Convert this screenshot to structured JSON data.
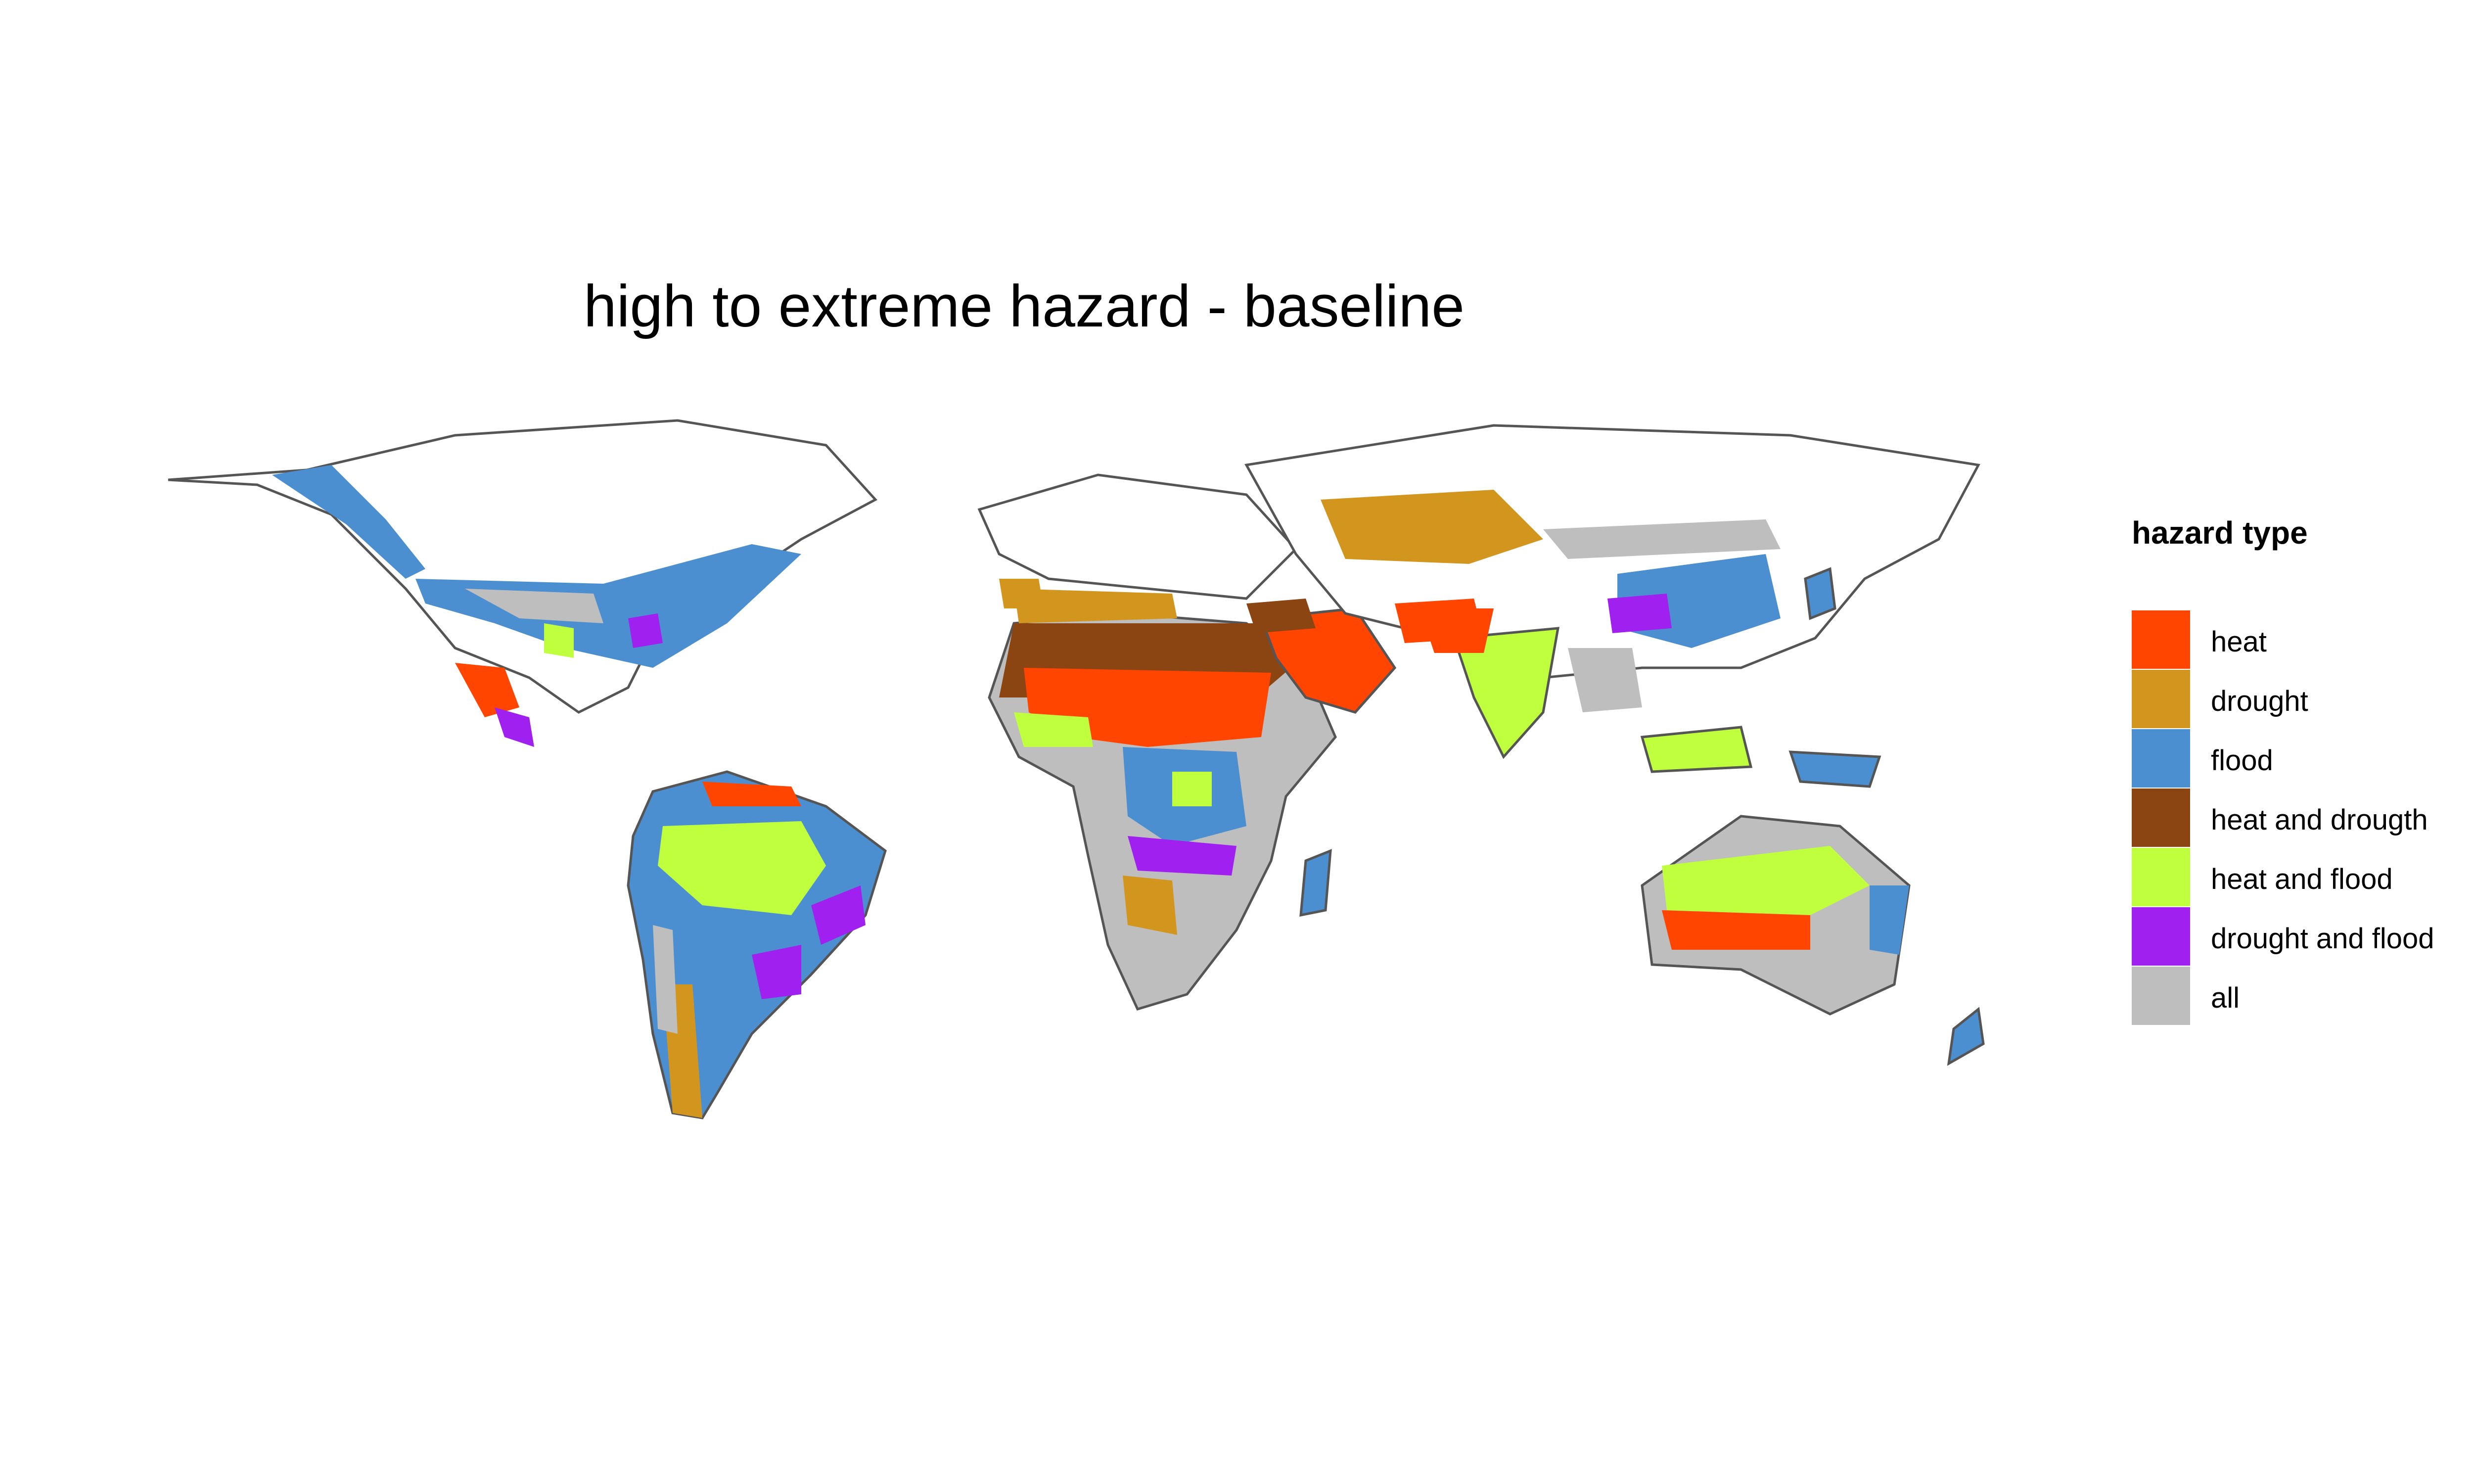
{
  "title": "high to extreme hazard - baseline",
  "legend": {
    "title": "hazard type",
    "items": [
      {
        "key": "heat",
        "label": "heat",
        "color": "#FF4500"
      },
      {
        "key": "drought",
        "label": "drought",
        "color": "#D2961E"
      },
      {
        "key": "flood",
        "label": "flood",
        "color": "#4C8FD0"
      },
      {
        "key": "heat_drought",
        "label": "heat and drougth",
        "color": "#8B4513"
      },
      {
        "key": "heat_flood",
        "label": "heat and flood",
        "color": "#BFFF3D"
      },
      {
        "key": "drought_flood",
        "label": "drought and flood",
        "color": "#A020F0"
      },
      {
        "key": "all",
        "label": "all",
        "color": "#BEBEBE"
      }
    ]
  },
  "map": {
    "projection": "equirectangular world",
    "border_color": "#555555",
    "background": "#ffffff"
  }
}
